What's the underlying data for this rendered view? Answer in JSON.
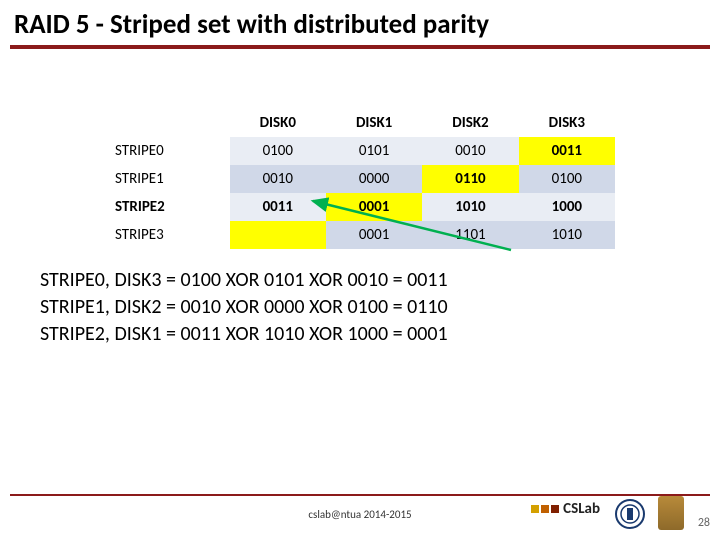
{
  "title": "RAID 5 - Striped set with distributed parity",
  "table": {
    "headers": [
      "",
      "DISK0",
      "DISK1",
      "DISK2",
      "DISK3"
    ],
    "rows": [
      {
        "label": "STRIPE0",
        "cells": [
          "0100",
          "0101",
          "0010",
          "0011"
        ],
        "parity_col": 3,
        "bold": false
      },
      {
        "label": "STRIPE1",
        "cells": [
          "0010",
          "0000",
          "0110",
          "0100"
        ],
        "parity_col": 2,
        "bold": false
      },
      {
        "label": "STRIPE2",
        "cells": [
          "0011",
          "0001",
          "1010",
          "1000"
        ],
        "parity_col": 1,
        "bold": true
      },
      {
        "label": "STRIPE3",
        "cells": [
          "",
          "0001",
          "1101",
          "1010"
        ],
        "parity_col": 0,
        "bold": false
      }
    ],
    "colors": {
      "header_bg": "#ffffff",
      "row_even_bg": "#e9edf4",
      "row_odd_bg": "#d0d8e8",
      "parity_bg": "#ffff00",
      "text": "#000000"
    }
  },
  "arrow": {
    "color": "#00b050"
  },
  "calculations": [
    "STRIPE0, DISK3 = 0100 XOR 0101 XOR 0010 = 0011",
    "STRIPE1, DISK2 = 0010 XOR 0000 XOR 0100 = 0110",
    "STRIPE2, DISK1 = 0011 XOR 1010 XOR 1000 = 0001"
  ],
  "footer": {
    "text": "cslab@ntua 2014-2015",
    "slide_number": "28",
    "cslab_logo": {
      "colors": [
        "#d4a000",
        "#c06000",
        "#802000"
      ],
      "label": "CSLab"
    },
    "ntua_caption": "National Technical University of Athens"
  }
}
